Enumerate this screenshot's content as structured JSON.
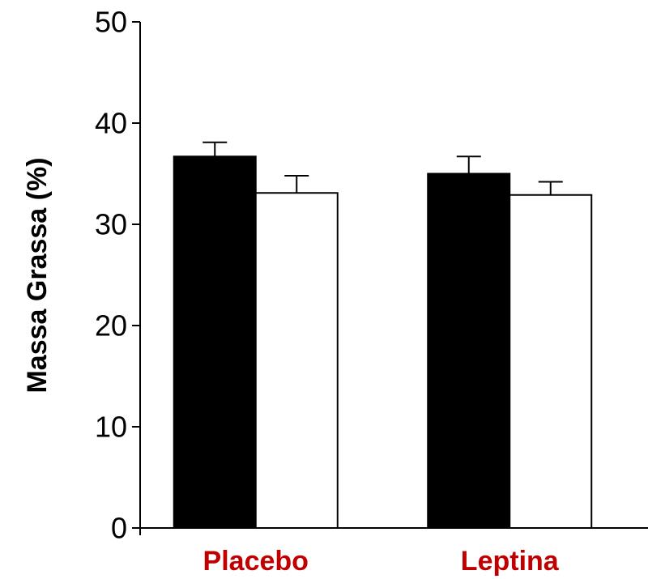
{
  "chart_data": {
    "type": "bar",
    "title": "",
    "xlabel": "",
    "ylabel": "Massa Grassa (%)",
    "ylim": [
      0,
      50
    ],
    "yticks": [
      0,
      10,
      20,
      30,
      40,
      50
    ],
    "categories": [
      "Placebo",
      "Leptina"
    ],
    "series": [
      {
        "values": [
          36.7,
          35.0
        ],
        "errors": [
          1.4,
          1.7
        ],
        "color": "#000000"
      },
      {
        "values": [
          33.1,
          32.9
        ],
        "errors": [
          1.7,
          1.3
        ],
        "color": "#ffffff"
      }
    ],
    "grid": false,
    "legend": "none",
    "colors": {
      "category_label": "#c00000",
      "axis": "#000000",
      "bar_edge": "#000000"
    }
  }
}
